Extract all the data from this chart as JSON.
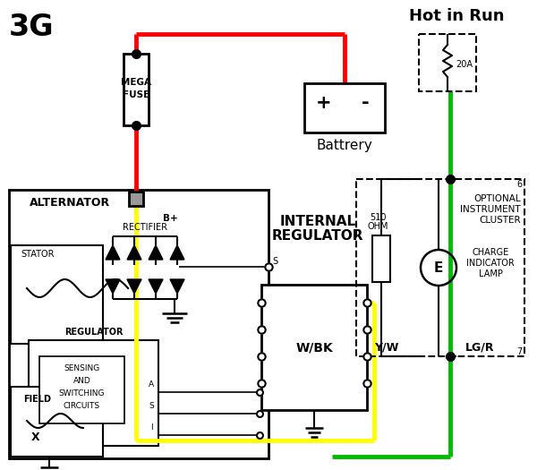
{
  "bg": "#ffffff",
  "red": "#ff0000",
  "yellow": "#ffff00",
  "green": "#00bb00",
  "black": "#000000",
  "title_3g": "3G",
  "hot_in_run": "Hot in Run",
  "mega_fuse_1": "MEGA",
  "mega_fuse_2": "FUSE",
  "battery_label": "Battrery",
  "alternator_label": "ALTERNATOR",
  "internal_reg_1": "INTERNAL",
  "internal_reg_2": "REGULATOR",
  "wbk_label": "W/BK",
  "yw_label": "Y/W",
  "lgr_label": "LG/R",
  "optional_1": "OPTIONAL",
  "optional_2": "INSTRUMENT",
  "optional_3": "CLUSTER",
  "charge_1": "CHARGE",
  "charge_2": "INDICATOR",
  "charge_3": "LAMP",
  "sensing_1": "SENSING",
  "sensing_2": "AND",
  "sensing_3": "SWITCHING",
  "sensing_4": "CIRCUITS",
  "regulator_lbl": "REGULATOR",
  "stator_lbl": "STATOR",
  "rectifier_lbl": "RECTIFIER",
  "bplus_lbl": "B+",
  "field_lbl": "FIELD",
  "ohm_1": "510",
  "ohm_2": "OHM",
  "fuse20_lbl": "20A",
  "term6": "6",
  "term7": "7",
  "e_lbl": "E",
  "s_lbl": "S"
}
